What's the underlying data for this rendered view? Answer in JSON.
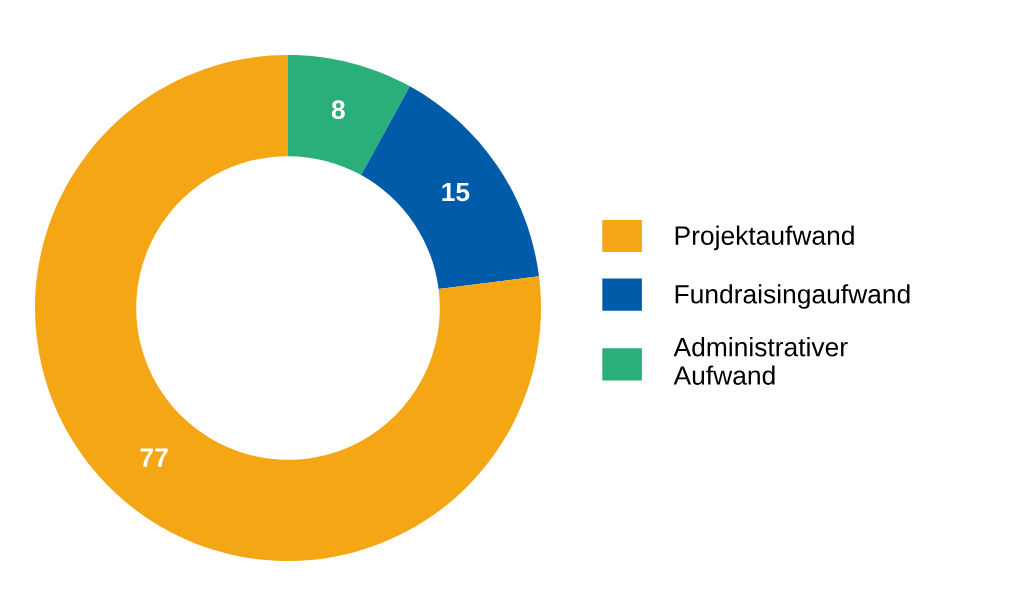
{
  "chart_data": {
    "type": "donut",
    "categories": [
      "Projektaufwand",
      "Fundraisingaufwand",
      "Administrativer Aufwand"
    ],
    "values": [
      77,
      15,
      8
    ],
    "colors": [
      "#f5a614",
      "#005ca8",
      "#2aae7a"
    ],
    "data_labels": true,
    "legend": "right"
  }
}
